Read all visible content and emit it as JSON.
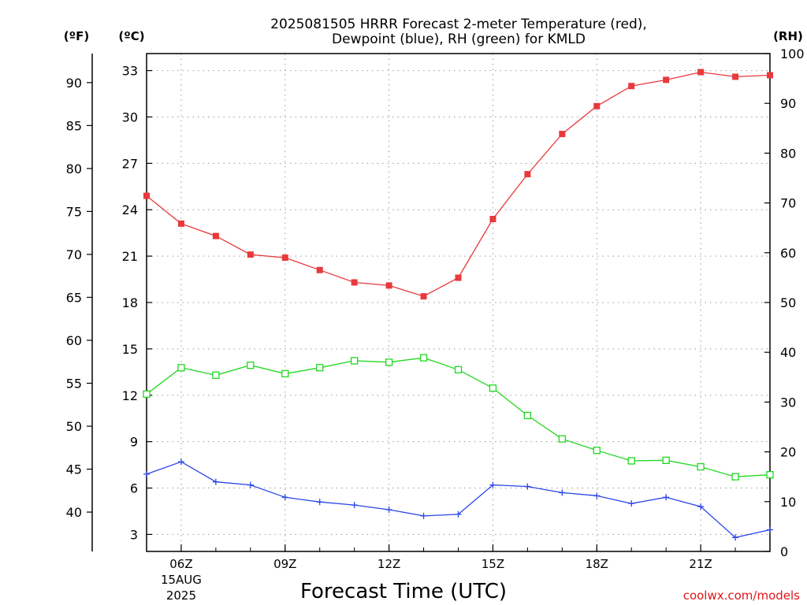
{
  "chart_data": {
    "type": "line",
    "title_lines": [
      "2025081505 HRRR Forecast 2-meter Temperature (red),",
      "Dewpoint (blue), RH (green) for KMLD"
    ],
    "xlabel": "Forecast Time (UTC)",
    "credit": "coolwx.com/models",
    "unit_labels": {
      "fahrenheit": "(ºF)",
      "celsius": "(ºC)",
      "rh": "(RH)"
    },
    "x": [
      5,
      6,
      7,
      8,
      9,
      10,
      11,
      12,
      13,
      14,
      15,
      16,
      17,
      18,
      19,
      20,
      21,
      22,
      23
    ],
    "xlim": [
      5,
      23
    ],
    "x_ticks": [
      {
        "x": 6,
        "label": "06Z",
        "sublabels": [
          "15AUG",
          "2025"
        ]
      },
      {
        "x": 9,
        "label": "09Z"
      },
      {
        "x": 12,
        "label": "12Z"
      },
      {
        "x": 15,
        "label": "15Z"
      },
      {
        "x": 18,
        "label": "18Z"
      },
      {
        "x": 21,
        "label": "21Z"
      }
    ],
    "ylim_celsius": [
      1.9,
      34.1
    ],
    "celsius_ticks": [
      3,
      6,
      9,
      12,
      15,
      18,
      21,
      24,
      27,
      30,
      33
    ],
    "fahrenheit_ticks": [
      40,
      45,
      50,
      55,
      60,
      65,
      70,
      75,
      80,
      85,
      90
    ],
    "rh_lim": [
      0,
      100
    ],
    "rh_ticks": [
      0,
      10,
      20,
      30,
      40,
      50,
      60,
      70,
      80,
      90,
      100
    ],
    "grid": true,
    "series": [
      {
        "name": "Temperature",
        "axis": "celsius",
        "color": "#e8393c",
        "marker": "filled-square",
        "values": [
          24.9,
          23.1,
          22.3,
          21.1,
          20.9,
          20.1,
          19.3,
          19.1,
          18.4,
          19.6,
          23.4,
          26.3,
          28.9,
          30.7,
          32.0,
          32.4,
          32.9,
          32.6,
          32.7
        ]
      },
      {
        "name": "Dewpoint",
        "axis": "celsius",
        "color": "#2a45e8",
        "marker": "plus",
        "values": [
          6.9,
          7.7,
          6.4,
          6.2,
          5.4,
          5.1,
          4.9,
          4.6,
          4.2,
          4.3,
          6.2,
          6.1,
          5.7,
          5.5,
          5.0,
          5.4,
          4.8,
          2.8,
          3.3
        ]
      },
      {
        "name": "RH",
        "axis": "rh",
        "color": "#20d820",
        "marker": "open-square",
        "values": [
          31.6,
          36.9,
          35.4,
          37.4,
          35.7,
          36.9,
          38.3,
          38.0,
          38.9,
          36.5,
          32.8,
          27.3,
          22.6,
          20.3,
          18.2,
          18.3,
          17.0,
          15.0,
          15.4
        ]
      }
    ]
  }
}
